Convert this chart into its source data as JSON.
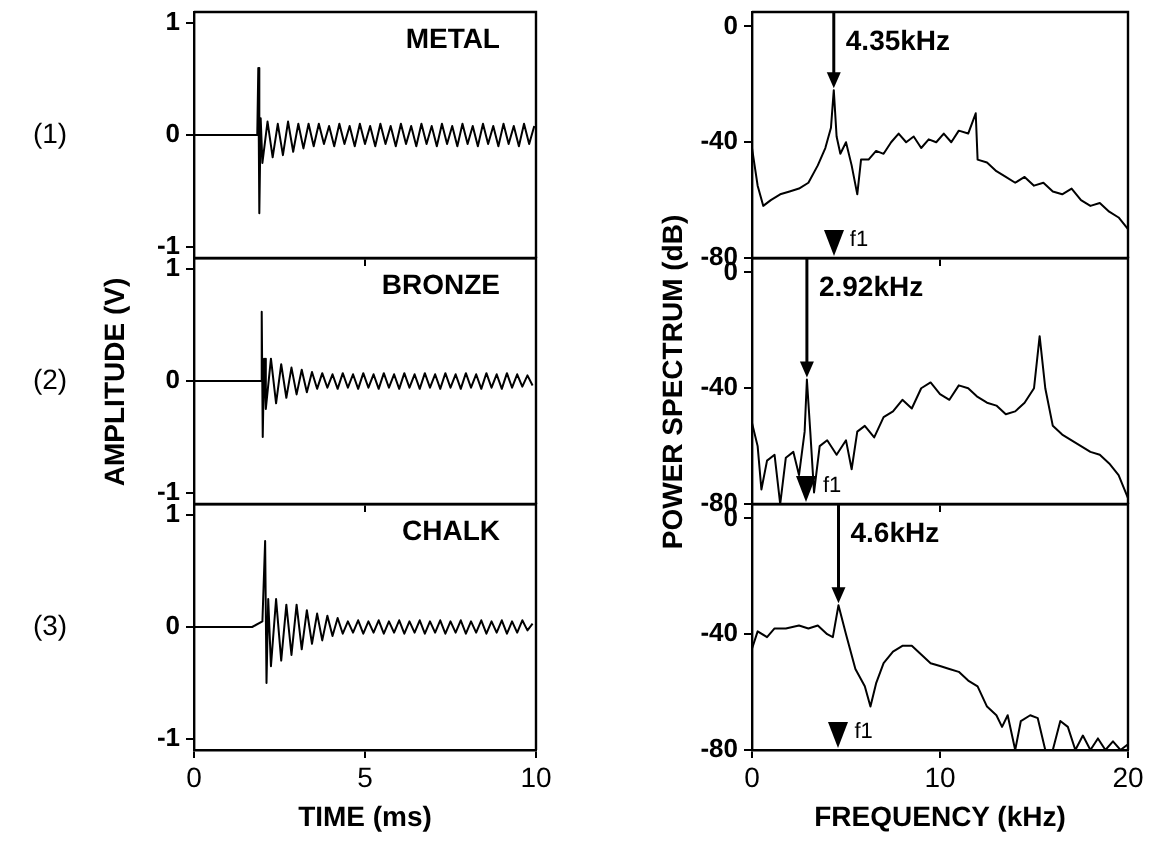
{
  "chart_data": [
    {
      "type": "line",
      "title": "METAL",
      "annotations": [
        "(1)"
      ],
      "xlim": [
        0,
        10
      ],
      "xticks": [
        0,
        5,
        10
      ],
      "ylim": [
        -1.1,
        1.1
      ],
      "yticks": [
        -1,
        0,
        1
      ],
      "tick_labels": "y",
      "x": [
        0,
        1.85,
        1.88,
        1.91,
        1.95,
        2.0,
        2.15,
        2.3,
        2.45,
        2.6,
        2.75,
        2.9,
        3.05,
        3.2,
        3.35,
        3.5,
        3.65,
        3.8,
        3.95,
        4.1,
        4.25,
        4.4,
        4.55,
        4.7,
        4.85,
        5.0,
        5.15,
        5.3,
        5.45,
        5.6,
        5.75,
        5.9,
        6.05,
        6.2,
        6.35,
        6.5,
        6.65,
        6.8,
        6.95,
        7.1,
        7.25,
        7.4,
        7.55,
        7.7,
        7.85,
        8.0,
        8.15,
        8.3,
        8.45,
        8.6,
        8.75,
        8.9,
        9.05,
        9.2,
        9.35,
        9.5,
        9.65,
        9.8,
        9.95
      ],
      "series": [
        {
          "color": "#000000",
          "values": [
            0,
            0,
            0.6,
            -0.7,
            0.15,
            -0.25,
            0.12,
            -0.2,
            0.1,
            -0.18,
            0.12,
            -0.15,
            0.1,
            -0.12,
            0.1,
            -0.1,
            0.1,
            -0.08,
            0.08,
            -0.1,
            0.1,
            -0.08,
            0.08,
            -0.1,
            0.1,
            -0.08,
            0.08,
            -0.1,
            0.1,
            -0.08,
            0.08,
            -0.1,
            0.1,
            -0.08,
            0.08,
            -0.1,
            0.1,
            -0.08,
            0.08,
            -0.1,
            0.1,
            -0.08,
            0.08,
            -0.1,
            0.1,
            -0.08,
            0.08,
            -0.1,
            0.1,
            -0.08,
            0.08,
            -0.1,
            0.1,
            -0.08,
            0.08,
            -0.1,
            0.1,
            -0.08,
            0.08
          ]
        }
      ]
    },
    {
      "type": "line",
      "annotations": [
        {
          "text": "4.35kHz",
          "x": 4.35,
          "y": -22
        },
        "f1"
      ],
      "xlim": [
        0,
        20
      ],
      "xticks": [
        0,
        10,
        20
      ],
      "ylim": [
        -80,
        5
      ],
      "yticks": [
        -80,
        -40,
        0
      ],
      "tick_labels": "y",
      "x": [
        0,
        0.3,
        0.6,
        1,
        1.5,
        2,
        2.5,
        3,
        3.5,
        3.9,
        4.2,
        4.35,
        4.5,
        4.7,
        5,
        5.3,
        5.6,
        5.8,
        6.2,
        6.6,
        7,
        7.4,
        7.8,
        8.2,
        8.6,
        9,
        9.4,
        9.8,
        10.2,
        10.6,
        11,
        11.5,
        11.9,
        12,
        12.5,
        13,
        13.5,
        14,
        14.5,
        15,
        15.5,
        16,
        16.5,
        17,
        17.5,
        18,
        18.5,
        19,
        19.5,
        20
      ],
      "series": [
        {
          "color": "#000000",
          "values": [
            -42,
            -55,
            -62,
            -60,
            -58,
            -57,
            -56,
            -54,
            -48,
            -42,
            -35,
            -22,
            -38,
            -44,
            -40,
            -48,
            -58,
            -46,
            -46,
            -43,
            -44,
            -40,
            -37,
            -40,
            -38,
            -42,
            -39,
            -40,
            -37,
            -40,
            -36,
            -37,
            -30,
            -46,
            -47,
            -50,
            -52,
            -54,
            -52,
            -55,
            -54,
            -57,
            -58,
            -56,
            -60,
            -62,
            -61,
            -64,
            -66,
            -70
          ]
        }
      ]
    },
    {
      "type": "line",
      "title": "BRONZE",
      "ylabel": "AMPLITUDE (V)",
      "annotations": [
        "(2)"
      ],
      "xlim": [
        0,
        10
      ],
      "xticks": [
        0,
        5,
        10
      ],
      "ylim": [
        -1.1,
        1.1
      ],
      "yticks": [
        -1,
        0,
        1
      ],
      "tick_labels": "y",
      "x": [
        0,
        1.95,
        1.98,
        2.01,
        2.05,
        2.1,
        2.25,
        2.4,
        2.55,
        2.7,
        2.85,
        3.0,
        3.15,
        3.3,
        3.45,
        3.6,
        3.75,
        3.9,
        4.05,
        4.2,
        4.35,
        4.5,
        4.65,
        4.8,
        4.95,
        5.1,
        5.25,
        5.4,
        5.55,
        5.7,
        5.85,
        6.0,
        6.15,
        6.3,
        6.45,
        6.6,
        6.75,
        6.9,
        7.05,
        7.2,
        7.35,
        7.5,
        7.65,
        7.8,
        7.95,
        8.1,
        8.25,
        8.4,
        8.55,
        8.7,
        8.85,
        9.0,
        9.15,
        9.3,
        9.45,
        9.6,
        9.75,
        9.9
      ],
      "series": [
        {
          "color": "#000000",
          "values": [
            0,
            0,
            0.62,
            -0.5,
            0.2,
            -0.25,
            0.2,
            -0.2,
            0.15,
            -0.15,
            0.12,
            -0.12,
            0.1,
            -0.1,
            0.08,
            -0.07,
            0.07,
            -0.06,
            0.06,
            -0.07,
            0.07,
            -0.06,
            0.06,
            -0.07,
            0.07,
            -0.06,
            0.06,
            -0.07,
            0.07,
            -0.06,
            0.06,
            -0.07,
            0.07,
            -0.06,
            0.06,
            -0.07,
            0.07,
            -0.06,
            0.06,
            -0.07,
            0.07,
            -0.06,
            0.06,
            -0.07,
            0.07,
            -0.06,
            0.06,
            -0.07,
            0.07,
            -0.06,
            0.06,
            -0.07,
            0.07,
            -0.06,
            0.06,
            -0.05,
            0.05,
            -0.04
          ]
        }
      ]
    },
    {
      "type": "line",
      "ylabel": "POWER SPECTRUM (dB)",
      "annotations": [
        {
          "text": "2.92kHz",
          "x": 2.92,
          "y": -37
        },
        "f1"
      ],
      "xlim": [
        0,
        20
      ],
      "xticks": [
        0,
        10,
        20
      ],
      "ylim": [
        -80,
        5
      ],
      "yticks": [
        -80,
        -40,
        0
      ],
      "tick_labels": "y",
      "x": [
        0,
        0.3,
        0.5,
        0.8,
        1.2,
        1.5,
        1.8,
        2.2,
        2.5,
        2.8,
        2.92,
        3.1,
        3.3,
        3.6,
        4,
        4.5,
        5,
        5.3,
        5.6,
        6,
        6.5,
        7,
        7.5,
        8,
        8.5,
        9,
        9.5,
        10,
        10.5,
        11,
        11.5,
        12,
        12.5,
        13,
        13.5,
        14,
        14.5,
        15,
        15.3,
        15.6,
        16,
        16.5,
        17,
        17.5,
        18,
        18.5,
        19,
        19.5,
        20
      ],
      "series": [
        {
          "color": "#000000",
          "values": [
            -52,
            -60,
            -75,
            -65,
            -63,
            -80,
            -64,
            -62,
            -70,
            -55,
            -37,
            -55,
            -76,
            -60,
            -58,
            -63,
            -58,
            -68,
            -55,
            -53,
            -57,
            -50,
            -48,
            -44,
            -47,
            -40,
            -38,
            -42,
            -44,
            -39,
            -40,
            -43,
            -45,
            -46,
            -49,
            -48,
            -45,
            -40,
            -22,
            -40,
            -53,
            -56,
            -58,
            -60,
            -62,
            -63,
            -66,
            -70,
            -78
          ]
        }
      ]
    },
    {
      "type": "line",
      "title": "CHALK",
      "xlabel": "TIME (ms)",
      "annotations": [
        "(3)"
      ],
      "xlim": [
        0,
        10
      ],
      "xticks": [
        0,
        5,
        10
      ],
      "ylim": [
        -1.1,
        1.1
      ],
      "yticks": [
        -1,
        0,
        1
      ],
      "x": [
        0,
        1.7,
        2.0,
        2.08,
        2.12,
        2.17,
        2.25,
        2.4,
        2.55,
        2.7,
        2.85,
        3.0,
        3.15,
        3.3,
        3.45,
        3.6,
        3.75,
        3.9,
        4.05,
        4.2,
        4.35,
        4.5,
        4.65,
        4.8,
        4.95,
        5.1,
        5.25,
        5.4,
        5.55,
        5.7,
        5.85,
        6.0,
        6.15,
        6.3,
        6.45,
        6.6,
        6.75,
        6.9,
        7.05,
        7.2,
        7.35,
        7.5,
        7.65,
        7.8,
        7.95,
        8.1,
        8.25,
        8.4,
        8.55,
        8.7,
        8.85,
        9.0,
        9.15,
        9.3,
        9.45,
        9.6,
        9.75,
        9.9
      ],
      "series": [
        {
          "color": "#000000",
          "values": [
            0,
            0,
            0.05,
            0.77,
            -0.5,
            0.25,
            -0.35,
            0.25,
            -0.3,
            0.2,
            -0.25,
            0.2,
            -0.2,
            0.15,
            -0.15,
            0.12,
            -0.12,
            0.1,
            -0.08,
            0.08,
            -0.06,
            0.05,
            -0.05,
            0.06,
            -0.06,
            0.05,
            -0.05,
            0.06,
            -0.06,
            0.05,
            -0.05,
            0.06,
            -0.06,
            0.05,
            -0.05,
            0.06,
            -0.06,
            0.05,
            -0.05,
            0.06,
            -0.06,
            0.05,
            -0.05,
            0.06,
            -0.06,
            0.05,
            -0.05,
            0.06,
            -0.06,
            0.05,
            -0.05,
            0.06,
            -0.06,
            0.05,
            -0.05,
            0.06,
            -0.03,
            0.03
          ]
        }
      ]
    },
    {
      "type": "line",
      "xlabel": "FREQUENCY (kHz)",
      "annotations": [
        {
          "text": "4.6kHz",
          "x": 4.6,
          "y": -30
        },
        "f1"
      ],
      "xlim": [
        0,
        20
      ],
      "xticks": [
        0,
        10,
        20
      ],
      "ylim": [
        -80,
        5
      ],
      "yticks": [
        -80,
        -40,
        0
      ],
      "x": [
        0,
        0.3,
        0.8,
        1.2,
        1.8,
        2.5,
        3,
        3.5,
        4,
        4.3,
        4.6,
        5,
        5.5,
        6,
        6.3,
        6.6,
        7,
        7.5,
        8,
        8.5,
        9,
        9.5,
        10,
        10.5,
        11,
        11.5,
        12,
        12.5,
        13,
        13.3,
        13.6,
        14,
        14.3,
        14.8,
        15.2,
        15.6,
        16,
        16.4,
        16.8,
        17.2,
        17.6,
        18,
        18.4,
        18.8,
        19.2,
        19.6,
        20
      ],
      "series": [
        {
          "color": "#000000",
          "values": [
            -45,
            -39,
            -41,
            -38,
            -38,
            -37,
            -38,
            -37,
            -40,
            -41,
            -30,
            -40,
            -52,
            -58,
            -65,
            -57,
            -50,
            -46,
            -44,
            -44,
            -47,
            -50,
            -51,
            -52,
            -53,
            -56,
            -58,
            -65,
            -68,
            -72,
            -68,
            -80,
            -70,
            -68,
            -69,
            -80,
            -80,
            -70,
            -72,
            -80,
            -75,
            -80,
            -76,
            -80,
            -77,
            -80,
            -78
          ]
        }
      ]
    }
  ]
}
